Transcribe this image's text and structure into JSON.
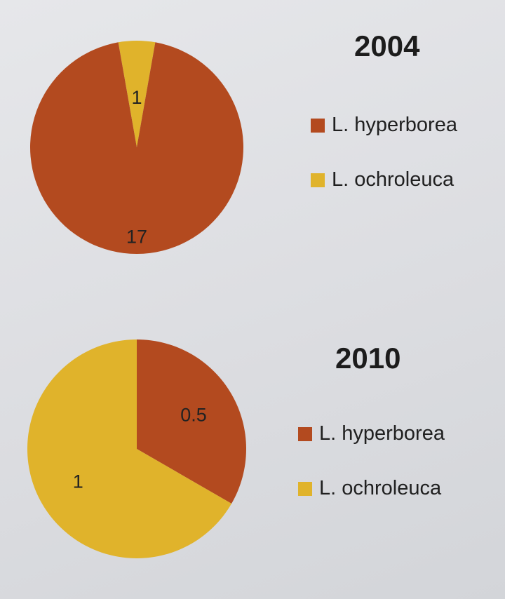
{
  "chart_data": [
    {
      "type": "pie",
      "title": "2004",
      "categories": [
        "L. hyperborea",
        "L. ochroleuca"
      ],
      "values": [
        17,
        1
      ],
      "colors": [
        "#b34a1f",
        "#e0b32b"
      ],
      "legend_position": "right"
    },
    {
      "type": "pie",
      "title": "2010",
      "categories": [
        "L. hyperborea",
        "L. ochroleuca"
      ],
      "values": [
        0.5,
        1
      ],
      "colors": [
        "#b34a1f",
        "#e0b32b"
      ],
      "legend_position": "right"
    }
  ]
}
